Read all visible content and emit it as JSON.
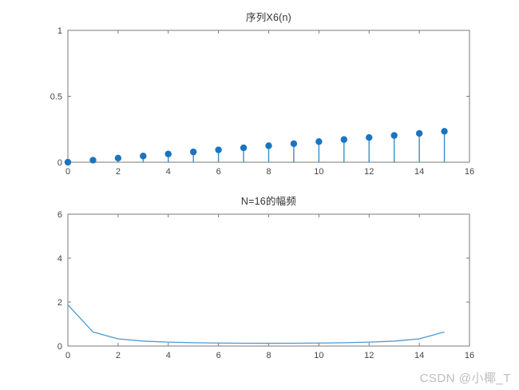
{
  "watermark": {
    "text": "CSDN @小椰_T"
  },
  "colors": {
    "background": "#ffffff",
    "axis": "#7a7a7a",
    "tick_label": "#454545",
    "title": "#333333",
    "marker": "#1b74bf",
    "stem_line": "#3b8ec9",
    "curve": "#4a9bd4",
    "watermark": "#bdbdbd"
  },
  "chart_data": [
    {
      "type": "stem",
      "title": "序列X6(n)",
      "xlabel": "",
      "ylabel": "",
      "x": [
        0,
        1,
        2,
        3,
        4,
        5,
        6,
        7,
        8,
        9,
        10,
        11,
        12,
        13,
        14,
        15
      ],
      "values": [
        0,
        0.0156,
        0.0313,
        0.0469,
        0.0625,
        0.0781,
        0.0938,
        0.1094,
        0.125,
        0.1406,
        0.1563,
        0.1719,
        0.1875,
        0.2031,
        0.2188,
        0.2344
      ],
      "xlim": [
        0,
        16
      ],
      "ylim": [
        0,
        1
      ],
      "xticks": [
        0,
        2,
        4,
        6,
        8,
        10,
        12,
        14,
        16
      ],
      "yticks": [
        0,
        0.5,
        1
      ],
      "grid": false,
      "legend": null
    },
    {
      "type": "line",
      "title": "N=16的幅频",
      "xlabel": "",
      "ylabel": "",
      "x": [
        0,
        1,
        2,
        3,
        4,
        5,
        6,
        7,
        8,
        9,
        10,
        11,
        12,
        13,
        14,
        15
      ],
      "values": [
        1.875,
        0.6407,
        0.3266,
        0.225,
        0.1768,
        0.1503,
        0.1353,
        0.1274,
        0.125,
        0.1274,
        0.1353,
        0.1503,
        0.1768,
        0.225,
        0.3266,
        0.6407
      ],
      "xlim": [
        0,
        16
      ],
      "ylim": [
        0,
        6
      ],
      "xticks": [
        0,
        2,
        4,
        6,
        8,
        10,
        12,
        14,
        16
      ],
      "yticks": [
        0,
        2,
        4,
        6
      ],
      "grid": false,
      "legend": null
    }
  ]
}
